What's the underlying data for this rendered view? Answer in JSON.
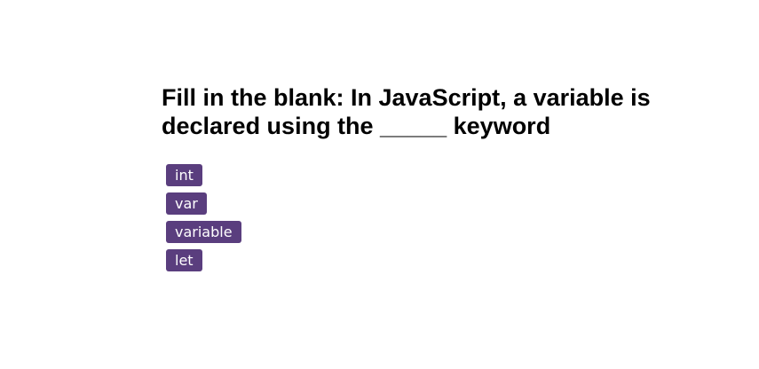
{
  "question": "Fill in the blank: In JavaScript, a variable is declared using the _____ keyword",
  "options": [
    {
      "label": "int"
    },
    {
      "label": "var"
    },
    {
      "label": "variable"
    },
    {
      "label": "let"
    }
  ],
  "colors": {
    "option_background": "#5a3e7e",
    "option_text": "#ffffff",
    "question_text": "#000000"
  }
}
